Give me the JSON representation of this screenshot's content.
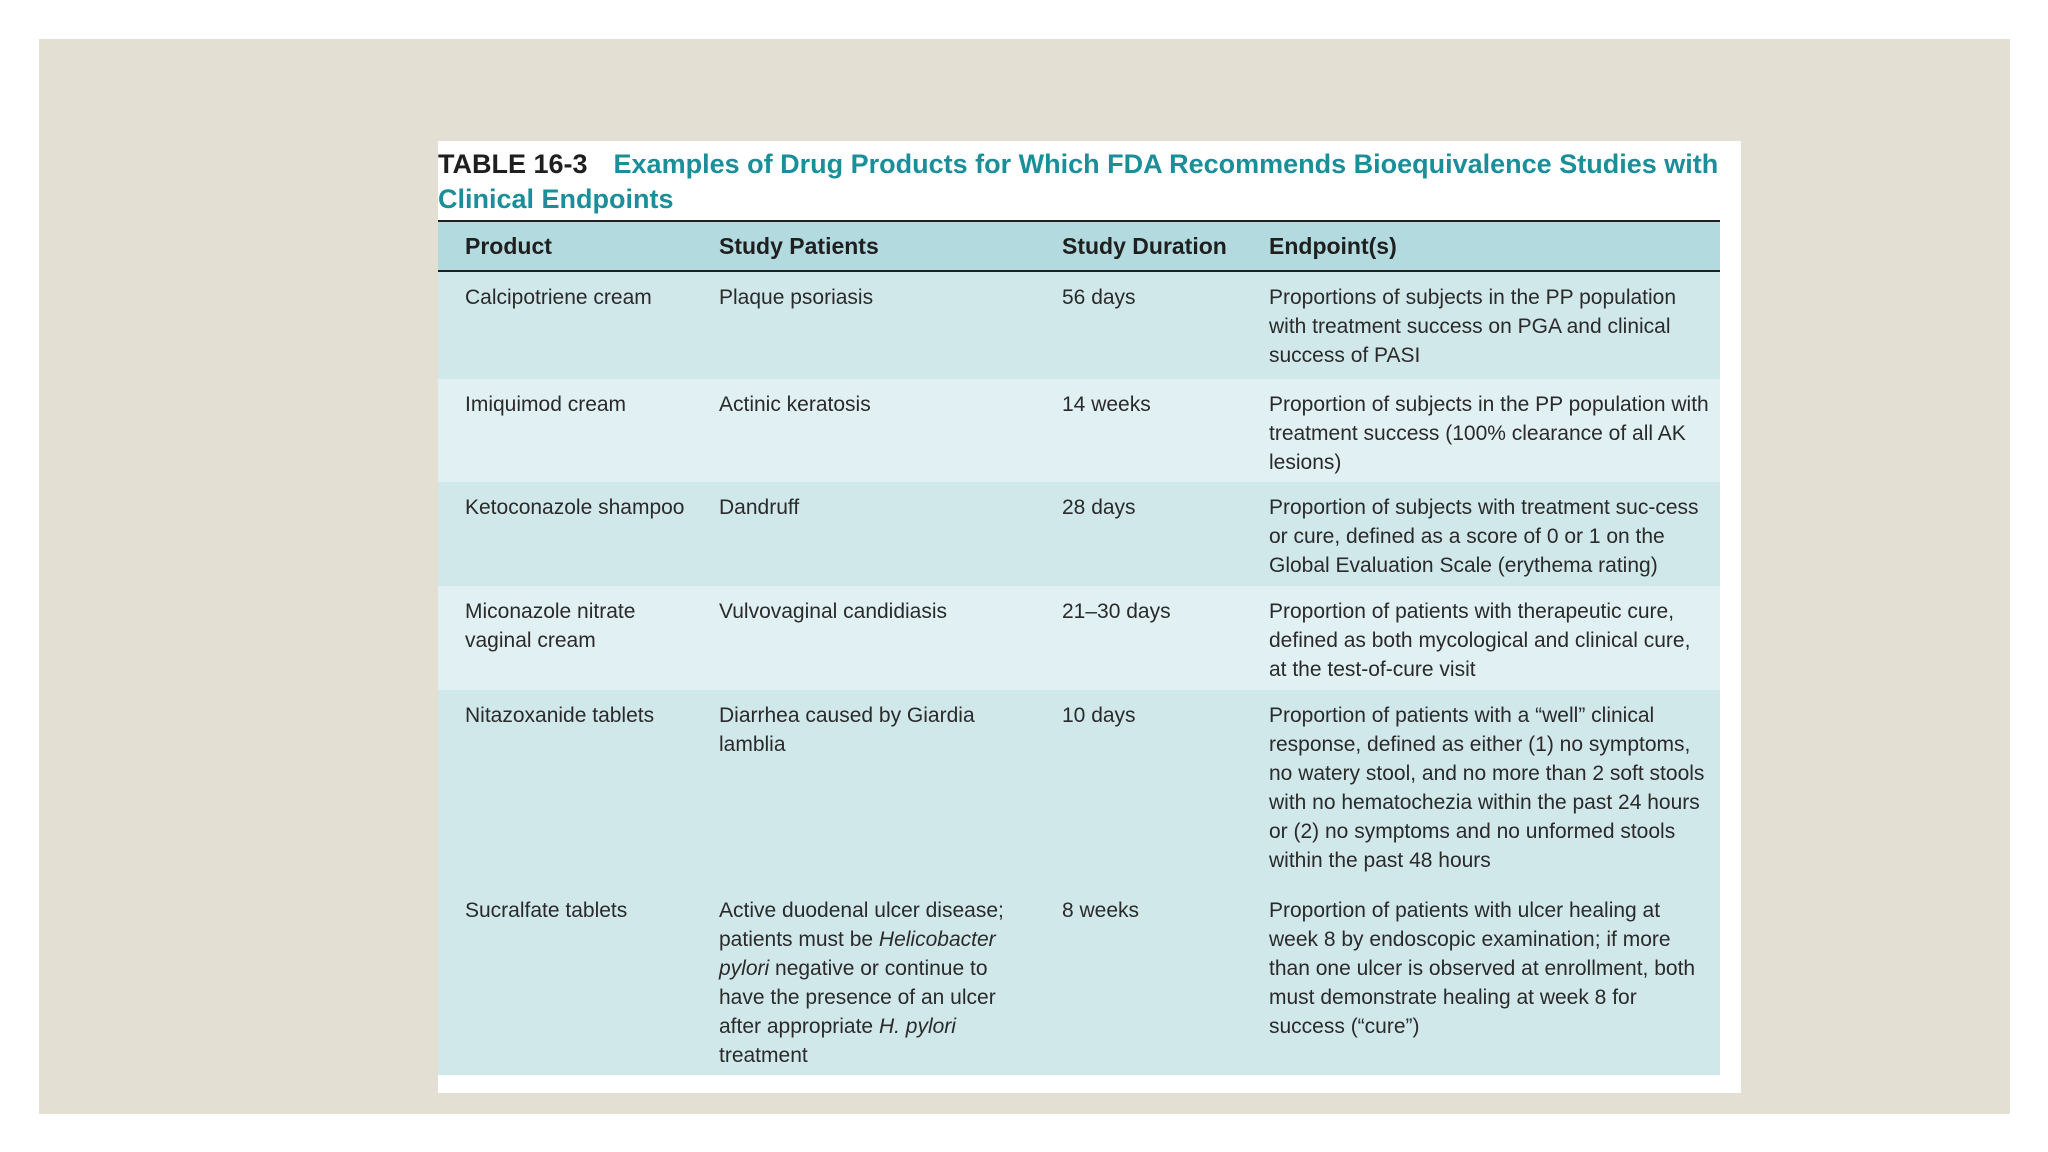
{
  "caption": {
    "label": "TABLE 16-3",
    "title": "Examples of Drug Products for Which FDA Recommends Bioequivalence Studies with Clinical Endpoints"
  },
  "table": {
    "headers": [
      "Product",
      "Study Patients",
      "Study Duration",
      "Endpoint(s)"
    ],
    "rows": [
      {
        "product": "Calcipotriene cream",
        "patients": "Plaque psoriasis",
        "duration": "56 days",
        "endpoint": "Proportions of subjects in the PP population with treatment success on PGA and clinical success of PASI"
      },
      {
        "product": "Imiquimod cream",
        "patients": "Actinic keratosis",
        "duration": "14 weeks",
        "endpoint": "Proportion of subjects in the PP population with treatment success (100% clearance of all AK lesions)"
      },
      {
        "product": "Ketoconazole shampoo",
        "patients": "Dandruff",
        "duration": "28 days",
        "endpoint": "Proportion of subjects with treatment suc-cess or cure, defined as a score of 0 or 1 on the Global Evaluation Scale (erythema rating)"
      },
      {
        "product": "Miconazole nitrate vaginal cream",
        "patients": "Vulvovaginal candidiasis",
        "duration": "21–30 days",
        "endpoint": "Proportion of patients with therapeutic cure, defined as both mycological and clinical cure, at the test-of-cure visit"
      },
      {
        "product": "Nitazoxanide tablets",
        "patients": "Diarrhea caused by Giardia lamblia",
        "duration": "10 days",
        "endpoint": "Proportion of patients with a “well” clinical response, defined as either (1) no symptoms, no watery stool, and no more than 2 soft stools with no hematochezia within the past 24 hours or (2) no symptoms and no unformed stools within the past 48 hours"
      },
      {
        "product": "Sucralfate tablets",
        "patients_parts": {
          "a": "Active duodenal ulcer disease; patients must be ",
          "b": "Helicobacter pylori",
          "c": " negative or continue to have the presence of an ulcer after appropriate ",
          "d": "H. pylori",
          "e": " treatment"
        },
        "duration": "8 weeks",
        "endpoint": "Proportion of patients with ulcer healing at week 8 by endoscopic examination; if more than one ulcer is observed at enrollment, both must demonstrate healing at week 8 for success (“cure”)"
      }
    ]
  }
}
